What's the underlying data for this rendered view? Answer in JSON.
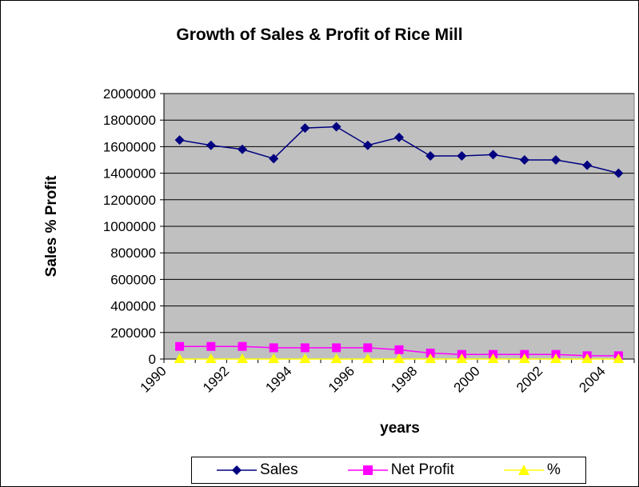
{
  "chart_data": {
    "type": "line",
    "title": "Growth of Sales & Profit of Rice Mill",
    "xlabel": "years",
    "ylabel": "Sales % Profit",
    "xlim": [
      1990,
      2005
    ],
    "ylim": [
      0,
      2000000
    ],
    "x": [
      1990.5,
      1991.5,
      1992.5,
      1993.5,
      1994.5,
      1995.5,
      1996.5,
      1997.5,
      1998.5,
      1999.5,
      2000.5,
      2001.5,
      2002.5,
      2003.5,
      2004.5
    ],
    "x_ticks": [
      "1990",
      "1992",
      "1994",
      "1996",
      "1998",
      "2000",
      "2002",
      "2004"
    ],
    "y_ticks": [
      "0",
      "200000",
      "400000",
      "600000",
      "800000",
      "1000000",
      "1200000",
      "1400000",
      "1600000",
      "1800000",
      "2000000"
    ],
    "grid": "horizontal",
    "legend_position": "bottom",
    "plot_background": "#C0C0C0",
    "series": [
      {
        "name": "Sales",
        "color": "#000080",
        "marker": "diamond",
        "values": [
          1650000,
          1610000,
          1580000,
          1510000,
          1740000,
          1750000,
          1610000,
          1670000,
          1530000,
          1530000,
          1540000,
          1500000,
          1500000,
          1460000,
          1400000
        ]
      },
      {
        "name": "Net Profit",
        "color": "#FF00FF",
        "marker": "square",
        "values": [
          95000,
          95000,
          95000,
          85000,
          85000,
          85000,
          85000,
          70000,
          45000,
          35000,
          35000,
          35000,
          35000,
          25000,
          25000
        ]
      },
      {
        "name": "%",
        "color": "#FFFF00",
        "marker": "triangle",
        "values": [
          5,
          5,
          5,
          5,
          5,
          5,
          5,
          4,
          3,
          2,
          2,
          2,
          2,
          2,
          2
        ]
      }
    ]
  }
}
